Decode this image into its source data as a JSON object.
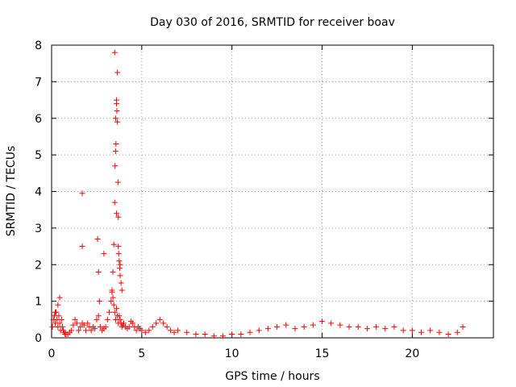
{
  "chart_data": {
    "type": "scatter",
    "title": "Day 030 of 2016, SRMTID for receiver boav",
    "xlabel": "GPS time / hours",
    "ylabel": "SRMTID / TECUs",
    "xlim": [
      0,
      24.5
    ],
    "ylim": [
      0,
      8
    ],
    "xticks": [
      0,
      5,
      10,
      15,
      20
    ],
    "xtick_labels": [
      "0",
      "5",
      "10",
      "15",
      "20"
    ],
    "yticks": [
      0,
      1,
      2,
      3,
      4,
      5,
      6,
      7,
      8
    ],
    "ytick_labels": [
      "0",
      "1",
      "2",
      "3",
      "4",
      "5",
      "6",
      "7",
      "8"
    ],
    "grid": true,
    "marker": "+",
    "series": [
      {
        "name": "SRMTID",
        "color": "#ff0000",
        "x": [
          0.05,
          0.1,
          0.15,
          0.2,
          0.25,
          0.3,
          0.35,
          0.4,
          0.45,
          0.5,
          0.55,
          0.6,
          0.65,
          0.7,
          0.75,
          0.8,
          0.9,
          1.0,
          1.1,
          1.2,
          1.3,
          1.4,
          1.5,
          1.6,
          1.7,
          1.8,
          1.9,
          2.0,
          2.1,
          2.2,
          2.3,
          2.4,
          2.5,
          2.6,
          2.7,
          2.8,
          2.9,
          3.0,
          3.1,
          3.2,
          3.3,
          3.35,
          3.4,
          3.45,
          3.5,
          3.55,
          3.6,
          3.65,
          3.7,
          3.75,
          3.8,
          3.85,
          3.9,
          3.95,
          4.0,
          4.1,
          4.2,
          4.3,
          4.4,
          4.5,
          4.6,
          4.7,
          4.8,
          4.9,
          5.0,
          5.2,
          5.4,
          5.6,
          5.8,
          6.0,
          6.2,
          6.4,
          6.6,
          6.8,
          7.0,
          7.5,
          8.0,
          8.5,
          9.0,
          9.5,
          10.0,
          10.5,
          11.0,
          11.5,
          12.0,
          12.5,
          13.0,
          13.5,
          14.0,
          14.5,
          15.0,
          15.5,
          16.0,
          16.5,
          17.0,
          17.5,
          18.0,
          18.5,
          19.0,
          19.5,
          20.0,
          20.5,
          21.0,
          21.5,
          22.0,
          22.5,
          22.8,
          0.2,
          0.35,
          0.45,
          1.7,
          1.7,
          2.55,
          2.6,
          2.65,
          2.9,
          3.35,
          3.4,
          3.45,
          3.5,
          3.52,
          3.55,
          3.57,
          3.6,
          3.62,
          3.65,
          3.68,
          3.7,
          3.72,
          3.75,
          3.78,
          3.8,
          3.85,
          3.9,
          3.55,
          3.6,
          3.65,
          3.5,
          3.6,
          3.7,
          3.8
        ],
        "y": [
          0.3,
          0.5,
          0.6,
          0.4,
          0.7,
          0.5,
          0.3,
          0.6,
          0.4,
          0.2,
          0.5,
          0.3,
          0.2,
          0.15,
          0.1,
          0.1,
          0.1,
          0.15,
          0.2,
          0.35,
          0.5,
          0.4,
          0.2,
          0.3,
          0.4,
          0.35,
          0.2,
          0.4,
          0.3,
          0.2,
          0.3,
          0.25,
          0.5,
          0.6,
          0.3,
          0.2,
          0.25,
          0.3,
          0.5,
          0.7,
          1.0,
          1.3,
          1.1,
          0.9,
          0.7,
          0.5,
          0.8,
          0.6,
          0.4,
          0.6,
          0.5,
          0.4,
          0.3,
          0.35,
          0.4,
          0.3,
          0.25,
          0.3,
          0.45,
          0.4,
          0.3,
          0.2,
          0.3,
          0.25,
          0.2,
          0.15,
          0.2,
          0.3,
          0.4,
          0.5,
          0.4,
          0.3,
          0.2,
          0.15,
          0.2,
          0.15,
          0.1,
          0.1,
          0.05,
          0.05,
          0.1,
          0.1,
          0.15,
          0.2,
          0.25,
          0.3,
          0.35,
          0.25,
          0.3,
          0.35,
          0.45,
          0.4,
          0.35,
          0.3,
          0.3,
          0.25,
          0.3,
          0.25,
          0.3,
          0.2,
          0.2,
          0.15,
          0.2,
          0.15,
          0.1,
          0.15,
          0.3,
          0.7,
          0.9,
          1.1,
          2.5,
          3.95,
          2.7,
          1.8,
          1.0,
          2.3,
          1.25,
          1.8,
          2.55,
          3.7,
          4.7,
          5.1,
          5.3,
          6.5,
          6.2,
          5.9,
          4.25,
          3.3,
          2.3,
          2.1,
          1.9,
          1.7,
          1.5,
          1.3,
          6.0,
          6.4,
          7.25,
          7.8,
          3.4,
          2.5,
          2.0
        ]
      }
    ]
  }
}
